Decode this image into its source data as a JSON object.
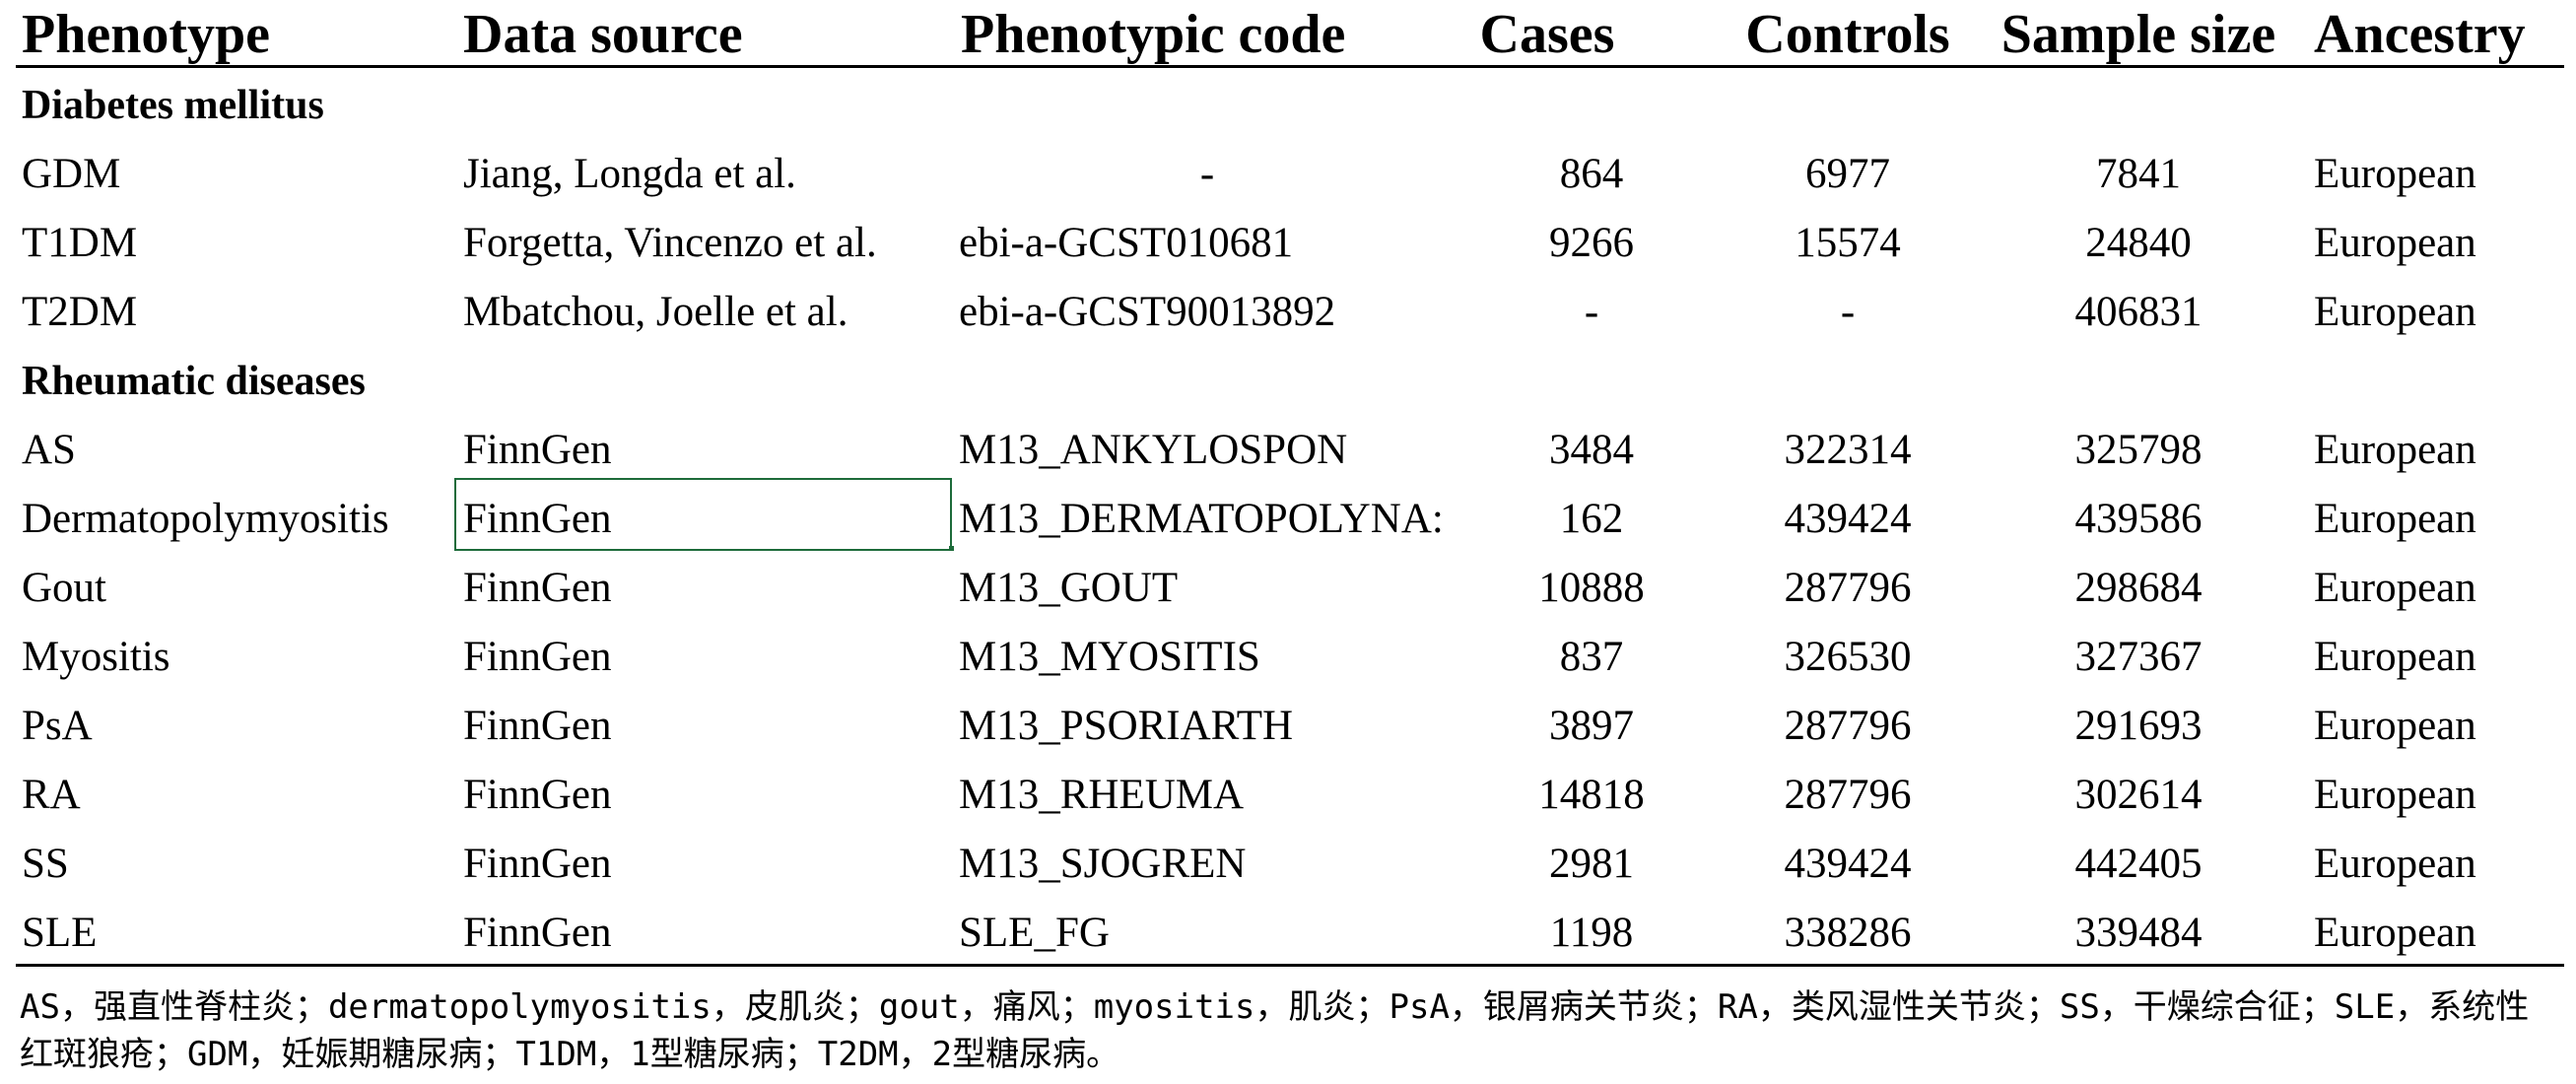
{
  "table": {
    "headers": {
      "phenotype": "Phenotype",
      "data_source": "Data source",
      "phenotypic_code": "Phenotypic code",
      "cases": "Cases",
      "controls": "Controls",
      "sample_size": "Sample size",
      "ancestry": "Ancestry"
    },
    "sections": [
      {
        "title": "Diabetes mellitus",
        "rows": [
          {
            "phenotype": "GDM",
            "data_source": "Jiang, Longda et al.",
            "code": "-",
            "cases": "864",
            "controls": "6977",
            "sample_size": "7841",
            "ancestry": "European"
          },
          {
            "phenotype": "T1DM",
            "data_source": "Forgetta, Vincenzo et al.",
            "code": "ebi-a-GCST010681",
            "cases": "9266",
            "controls": "15574",
            "sample_size": "24840",
            "ancestry": "European"
          },
          {
            "phenotype": "T2DM",
            "data_source": "Mbatchou, Joelle et al.",
            "code": "ebi-a-GCST90013892",
            "cases": "-",
            "controls": "-",
            "sample_size": "406831",
            "ancestry": "European"
          }
        ]
      },
      {
        "title": "Rheumatic diseases",
        "rows": [
          {
            "phenotype": "AS",
            "data_source": "FinnGen",
            "code": "M13_ANKYLOSPON",
            "cases": "3484",
            "controls": "322314",
            "sample_size": "325798",
            "ancestry": "European"
          },
          {
            "phenotype": "Dermatopolymyositis",
            "data_source": "FinnGen",
            "code": "M13_DERMATOPOLYNA:",
            "cases": "162",
            "controls": "439424",
            "sample_size": "439586",
            "ancestry": "European"
          },
          {
            "phenotype": "Gout",
            "data_source": "FinnGen",
            "code": "M13_GOUT",
            "cases": "10888",
            "controls": "287796",
            "sample_size": "298684",
            "ancestry": "European"
          },
          {
            "phenotype": "Myositis",
            "data_source": "FinnGen",
            "code": "M13_MYOSITIS",
            "cases": "837",
            "controls": "326530",
            "sample_size": "327367",
            "ancestry": "European"
          },
          {
            "phenotype": "PsA",
            "data_source": "FinnGen",
            "code": "M13_PSORIARTH",
            "cases": "3897",
            "controls": "287796",
            "sample_size": "291693",
            "ancestry": "European"
          },
          {
            "phenotype": "RA",
            "data_source": "FinnGen",
            "code": "M13_RHEUMA",
            "cases": "14818",
            "controls": "287796",
            "sample_size": "302614",
            "ancestry": "European"
          },
          {
            "phenotype": "SS",
            "data_source": "FinnGen",
            "code": "M13_SJOGREN",
            "cases": "2981",
            "controls": "439424",
            "sample_size": "442405",
            "ancestry": "European"
          },
          {
            "phenotype": "SLE",
            "data_source": "FinnGen",
            "code": "SLE_FG",
            "cases": "1198",
            "controls": "338286",
            "sample_size": "339484",
            "ancestry": "European"
          }
        ]
      }
    ]
  },
  "footnote": "AS，强直性脊柱炎；dermatopolymyositis，皮肌炎；gout，痛风；myositis，肌炎；PsA，银屑病关节炎；RA，类风湿性关节炎；SS，干燥综合征；SLE，系统性红斑狼疮；GDM，妊娠期糖尿病；T1DM，1型糖尿病；T2DM，2型糖尿病。",
  "colors": {
    "text": "#000000",
    "selected_cell_border": "#1d6b3a"
  }
}
